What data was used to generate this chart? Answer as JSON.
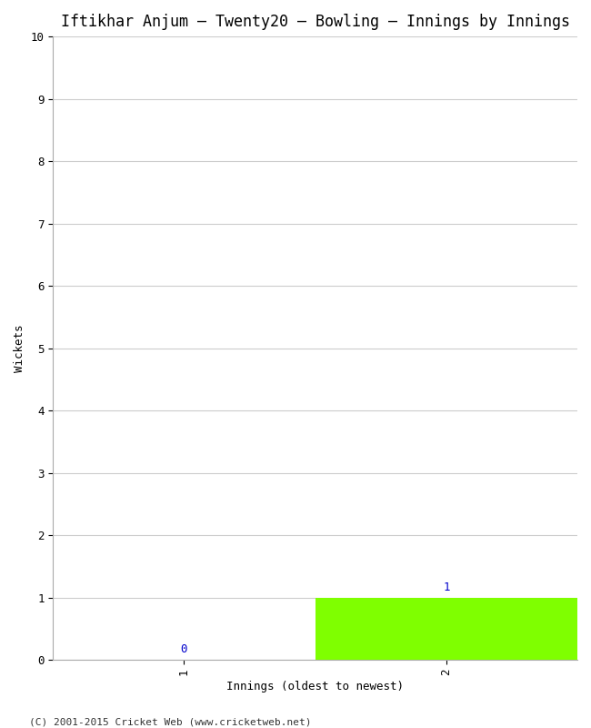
{
  "title": "Iftikhar Anjum – Twenty20 – Bowling – Innings by Innings",
  "xlabel": "Innings (oldest to newest)",
  "ylabel": "Wickets",
  "innings": [
    1,
    2
  ],
  "wickets": [
    0,
    1
  ],
  "bar_labels": [
    "0",
    "1"
  ],
  "bar_color": "#7fff00",
  "ylim": [
    0,
    10
  ],
  "yticks": [
    0,
    1,
    2,
    3,
    4,
    5,
    6,
    7,
    8,
    9,
    10
  ],
  "xtick_labels": [
    "1",
    "2"
  ],
  "bg_color": "#ffffff",
  "grid_color": "#cccccc",
  "title_fontsize": 12,
  "axis_label_fontsize": 9,
  "tick_fontsize": 9,
  "bar_label_color": "#0000cc",
  "footer": "(C) 2001-2015 Cricket Web (www.cricketweb.net)",
  "footer_fontsize": 8
}
